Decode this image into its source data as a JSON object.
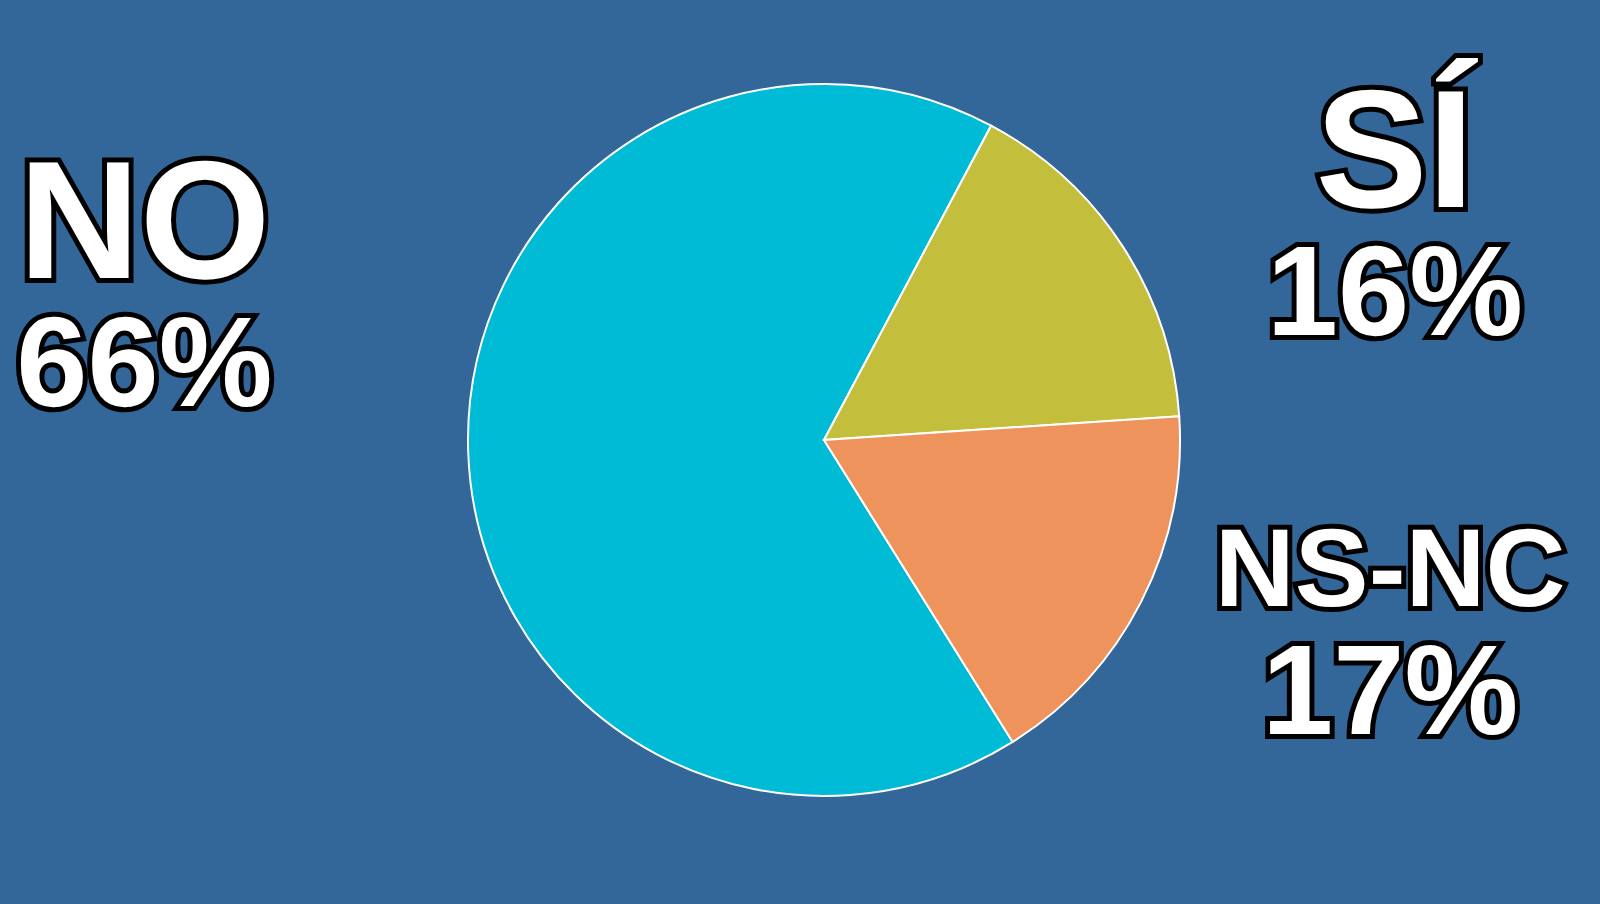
{
  "chart_data": {
    "type": "pie",
    "categories": [
      "NO",
      "SÍ",
      "NS-NC"
    ],
    "values": [
      66,
      16,
      17
    ],
    "value_labels": [
      "66%",
      "16%",
      "17%"
    ],
    "colors": [
      "#00bbd6",
      "#c4be3d",
      "#ef935c"
    ]
  }
}
